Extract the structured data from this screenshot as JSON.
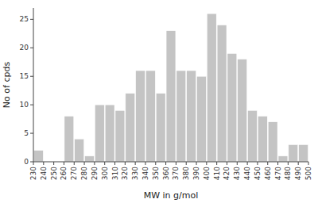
{
  "chart_data": {
    "type": "histogram",
    "xlabel": "MW in g/mol",
    "ylabel": "No of cpds",
    "bins": [
      230,
      240,
      250,
      260,
      270,
      280,
      290,
      300,
      310,
      320,
      330,
      340,
      350,
      360,
      370,
      380,
      390,
      400,
      410,
      420,
      430,
      440,
      450,
      460,
      470,
      480,
      490,
      500
    ],
    "values": [
      2,
      0,
      0,
      8,
      4,
      1,
      10,
      10,
      9,
      12,
      16,
      16,
      12,
      23,
      16,
      16,
      15,
      26,
      24,
      19,
      18,
      9,
      8,
      7,
      1,
      3,
      3
    ],
    "color": "#c4c4c4",
    "xlim": [
      230,
      500
    ],
    "ylim": [
      0,
      27
    ],
    "xticks": [
      230,
      240,
      250,
      260,
      270,
      280,
      290,
      300,
      310,
      320,
      330,
      340,
      350,
      360,
      370,
      380,
      390,
      400,
      410,
      420,
      430,
      440,
      450,
      460,
      470,
      480,
      490,
      500
    ],
    "yticks": [
      0,
      5,
      10,
      15,
      20,
      25
    ],
    "grid": false
  }
}
